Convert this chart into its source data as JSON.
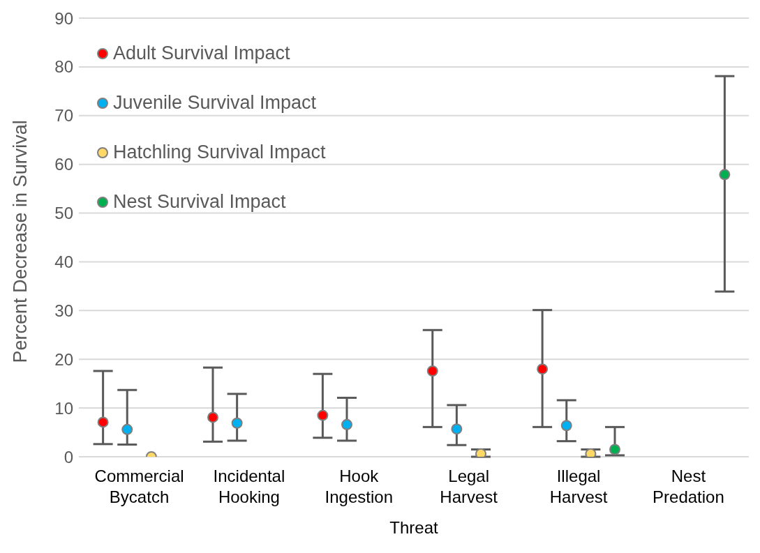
{
  "chart_data": {
    "type": "scatter",
    "categories": [
      "Commercial Bycatch",
      "Incidental Hooking",
      "Hook Ingestion",
      "Legal Harvest",
      "Illegal Harvest",
      "Nest Predation"
    ],
    "xlabel": "Threat",
    "ylabel": "Percent Decrease in Survival",
    "ylim": [
      0,
      90
    ],
    "yticks": [
      0,
      10,
      20,
      30,
      40,
      50,
      60,
      70,
      80,
      90
    ],
    "grid": "y",
    "legend": "top left",
    "marker": "circle",
    "series": [
      {
        "name": "Adult Survival Impact",
        "color": "#ff0000",
        "values": [
          7.1,
          8.1,
          8.5,
          17.6,
          18.0,
          null
        ],
        "errors": [
          [
            2.6,
            17.6
          ],
          [
            3.1,
            18.3
          ],
          [
            3.9,
            17.0
          ],
          [
            6.1,
            26.0
          ],
          [
            6.1,
            30.1
          ],
          null
        ]
      },
      {
        "name": "Juvenile Survival Impact",
        "color": "#00b0f0",
        "values": [
          5.6,
          6.9,
          6.6,
          5.7,
          6.4,
          null
        ],
        "errors": [
          [
            2.5,
            13.7
          ],
          [
            3.3,
            12.9
          ],
          [
            3.3,
            12.1
          ],
          [
            2.4,
            10.6
          ],
          [
            3.2,
            11.6
          ],
          null
        ]
      },
      {
        "name": "Hatchling Survival Impact",
        "color": "#ffd966",
        "values": [
          0,
          null,
          null,
          0.6,
          0.6,
          null
        ],
        "errors": [
          null,
          null,
          null,
          [
            0,
            1.5
          ],
          [
            0,
            1.5
          ],
          null
        ]
      },
      {
        "name": "Nest Survival Impact",
        "color": "#00b050",
        "values": [
          null,
          null,
          null,
          null,
          1.5,
          57.9
        ],
        "errors": [
          null,
          null,
          null,
          null,
          [
            0.3,
            6.1
          ],
          [
            33.9,
            78.1
          ]
        ]
      }
    ]
  }
}
